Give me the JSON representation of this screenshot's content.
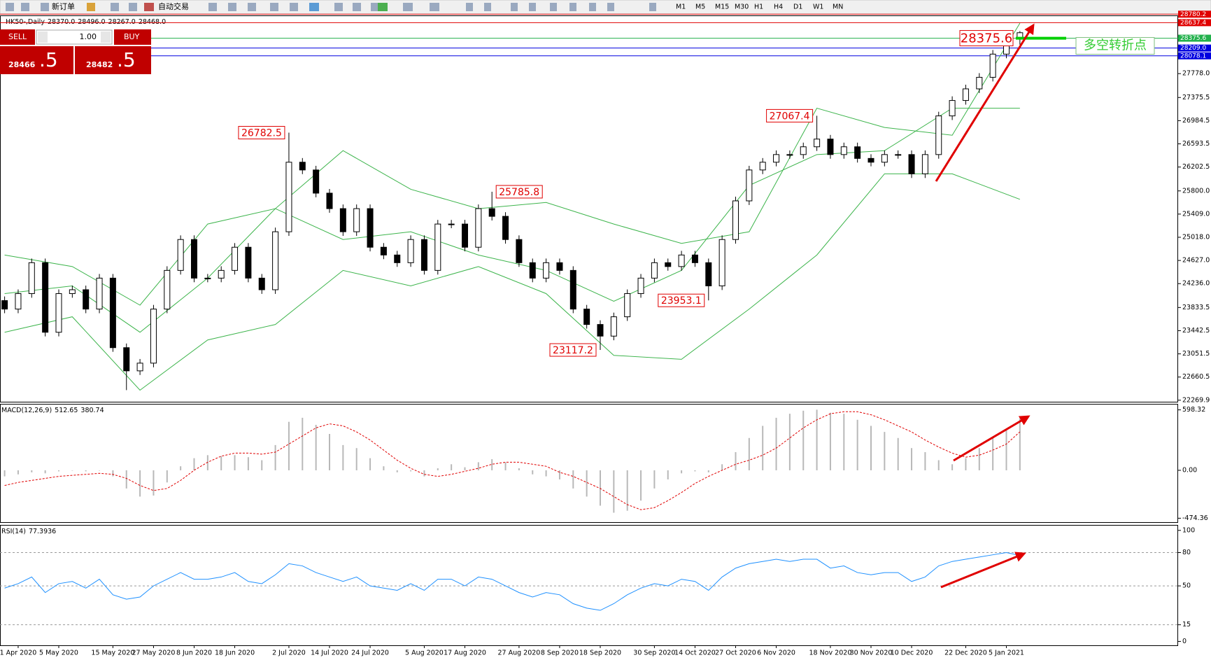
{
  "ui": {
    "toolbar": {
      "new_order": "新订单",
      "auto_trading": "自动交易",
      "timeframes": [
        "M1",
        "M5",
        "M15",
        "M30",
        "H1",
        "H4",
        "D1",
        "W1",
        "MN"
      ]
    },
    "trade": {
      "sell": "SELL",
      "buy": "BUY",
      "volume": "1.00",
      "sell_big": "28466",
      "sell_small": ".5",
      "buy_big": "28482",
      "buy_small": ".5"
    }
  },
  "chart_data": [
    {
      "type": "candlestick",
      "title": "HK50-,Daily",
      "last_quote_labels": [
        "28370.0",
        "28496.0",
        "28267.0",
        "28468.0"
      ],
      "up_color": "#ffffff",
      "down_color": "#000000",
      "wick_color": "#000000",
      "categories": [
        null,
        "1 Apr 2020",
        null,
        null,
        "5 May 2020",
        null,
        null,
        null,
        "15 May 2020",
        null,
        null,
        "27 May 2020",
        null,
        null,
        "8 Jun 2020",
        null,
        null,
        "18 Jun 2020",
        null,
        null,
        null,
        "2 Jul 2020",
        null,
        null,
        "14 Jul 2020",
        null,
        null,
        "24 Jul 2020",
        null,
        null,
        null,
        "5 Aug 2020",
        null,
        null,
        "17 Aug 2020",
        null,
        null,
        null,
        "27 Aug 2020",
        null,
        null,
        "8 Sep 2020",
        null,
        null,
        "18 Sep 2020",
        null,
        null,
        null,
        "30 Sep 2020",
        null,
        null,
        "14 Oct 2020",
        null,
        null,
        "27 Oct 2020",
        null,
        null,
        "6 Nov 2020",
        null,
        null,
        null,
        "18 Nov 2020",
        null,
        null,
        "30 Nov 2020",
        null,
        null,
        "10 Dec 2020",
        null,
        null,
        null,
        "22 Dec 2020",
        null,
        null,
        "5 Jan 2021",
        null
      ],
      "candles": [
        [
          23950,
          24020,
          23737,
          23807
        ],
        [
          23807,
          24138,
          23737,
          24068
        ],
        [
          24068,
          24659,
          23998,
          24589
        ],
        [
          24589,
          24659,
          23346,
          23416
        ],
        [
          23416,
          24138,
          23346,
          24068
        ],
        [
          24068,
          24203,
          23998,
          24133
        ],
        [
          24133,
          24203,
          23737,
          23807
        ],
        [
          23807,
          24399,
          23737,
          24329
        ],
        [
          24329,
          24399,
          23086,
          23156
        ],
        [
          23156,
          23226,
          22440,
          22765
        ],
        [
          22765,
          22965,
          22695,
          22895
        ],
        [
          22895,
          23877,
          22825,
          23807
        ],
        [
          23807,
          24529,
          23737,
          24459
        ],
        [
          24459,
          25050,
          24389,
          24980
        ],
        [
          24980,
          25050,
          24259,
          24329
        ],
        [
          24329,
          24399,
          24259,
          24329
        ],
        [
          24329,
          24529,
          24259,
          24459
        ],
        [
          24459,
          24920,
          24389,
          24850
        ],
        [
          24850,
          24920,
          24259,
          24329
        ],
        [
          24329,
          24399,
          24063,
          24133
        ],
        [
          24133,
          25181,
          24063,
          25111
        ],
        [
          25111,
          26782.5,
          25041,
          26284
        ],
        [
          26284,
          26354,
          26083,
          26153
        ],
        [
          26153,
          26223,
          25692,
          25762
        ],
        [
          25762,
          25832,
          25431,
          25501
        ],
        [
          25501,
          25571,
          25041,
          25111
        ],
        [
          25111,
          25571,
          25041,
          25501
        ],
        [
          25501,
          25571,
          24780,
          24850
        ],
        [
          24850,
          24920,
          24649,
          24719
        ],
        [
          24719,
          24789,
          24519,
          24589
        ],
        [
          24589,
          25050,
          24519,
          24980
        ],
        [
          24980,
          25050,
          24389,
          24459
        ],
        [
          24459,
          25311,
          24389,
          25241
        ],
        [
          25241,
          25311,
          25171,
          25241
        ],
        [
          25241,
          25311,
          24780,
          24850
        ],
        [
          24850,
          25571,
          24780,
          25501
        ],
        [
          25501,
          25785.8,
          25301,
          25371
        ],
        [
          25371,
          25441,
          24910,
          24980
        ],
        [
          24980,
          25050,
          24519,
          24589
        ],
        [
          24589,
          24659,
          24259,
          24329
        ],
        [
          24329,
          24659,
          24259,
          24589
        ],
        [
          24589,
          24659,
          24389,
          24459
        ],
        [
          24459,
          24529,
          23737,
          23807
        ],
        [
          23807,
          23877,
          23477,
          23547
        ],
        [
          23547,
          23617,
          23117.2,
          23351
        ],
        [
          23351,
          23747,
          23281,
          23677
        ],
        [
          23677,
          24138,
          23607,
          24068
        ],
        [
          24068,
          24399,
          23998,
          24329
        ],
        [
          24329,
          24659,
          24259,
          24589
        ],
        [
          24589,
          24659,
          24454,
          24524
        ],
        [
          24524,
          24789,
          24454,
          24719
        ],
        [
          24719,
          24789,
          24519,
          24589
        ],
        [
          24589,
          24659,
          23953.1,
          24198
        ],
        [
          24198,
          25050,
          24128,
          24980
        ],
        [
          24980,
          25702,
          24910,
          25632
        ],
        [
          25632,
          26223,
          25562,
          26153
        ],
        [
          26153,
          26354,
          26083,
          26284
        ],
        [
          26284,
          26483,
          26214,
          26413
        ],
        [
          26413,
          26483,
          26343,
          26413
        ],
        [
          26413,
          26614,
          26343,
          26544
        ],
        [
          26544,
          27067.4,
          26474,
          26674
        ],
        [
          26674,
          26744,
          26343,
          26413
        ],
        [
          26413,
          26614,
          26343,
          26544
        ],
        [
          26544,
          26614,
          26278,
          26348
        ],
        [
          26348,
          26418,
          26214,
          26284
        ],
        [
          26284,
          26483,
          26214,
          26413
        ],
        [
          26413,
          26483,
          26343,
          26413
        ],
        [
          26413,
          26483,
          26018,
          26088
        ],
        [
          26088,
          26483,
          26018,
          26413
        ],
        [
          26413,
          27135,
          26343,
          27065
        ],
        [
          27065,
          27395,
          26995,
          27325
        ],
        [
          27325,
          27591,
          27255,
          27521
        ],
        [
          27521,
          27786,
          27451,
          27716
        ],
        [
          27716,
          28177,
          27646,
          28107
        ],
        [
          28107,
          28373,
          28037,
          28303
        ],
        [
          28370,
          28496,
          28267,
          28468
        ]
      ],
      "bollinger": {
        "color": "#3cb44b",
        "x": [
          0,
          5,
          10,
          15,
          20,
          25,
          30,
          35,
          40,
          45,
          50,
          55,
          60,
          65,
          70,
          75
        ],
        "upper": [
          24719,
          24524,
          23873,
          25241,
          25501,
          26479,
          25827,
          25501,
          25605,
          25241,
          24915,
          25111,
          27195,
          26870,
          26739,
          28629
        ],
        "middle": [
          24068,
          24198,
          23416,
          24329,
          25501,
          24980,
          25111,
          24719,
          24459,
          23938,
          24459,
          25892,
          26413,
          26479,
          27195,
          27195
        ],
        "lower": [
          23416,
          23677,
          22439,
          23286,
          23547,
          24459,
          24198,
          24524,
          24068,
          23026,
          22960,
          23807,
          24719,
          26088,
          26088,
          25658
        ]
      },
      "levels": [
        {
          "value": 28780.2,
          "color": "#e00000"
        },
        {
          "value": 28637.4,
          "color": "#e00000"
        },
        {
          "value": 28375.6,
          "color": "#22b14c"
        },
        {
          "value": 28209,
          "label": "28209.0",
          "color": "#0000e0"
        },
        {
          "value": 28078.1,
          "color": "#0000e0"
        }
      ],
      "annotation": "多空转折点",
      "ylim": [
        22244,
        28760
      ],
      "yticks": [
        {
          "value": 27778,
          "label": "27778.0"
        },
        27375.5,
        26984.5,
        26593.5,
        26202.5,
        {
          "value": 25800,
          "label": "25800.0"
        },
        {
          "value": 25409,
          "label": "25409.0"
        },
        {
          "value": 25018,
          "label": "25018.0"
        },
        {
          "value": 24627,
          "label": "24627.0"
        },
        {
          "value": 24236,
          "label": "24236.0"
        },
        23833.5,
        23442.5,
        23051.5,
        22660.5,
        22269.9
      ]
    },
    {
      "type": "macd",
      "title": "MACD(12,26,9)",
      "histogram": {
        "color": "#b8b8b8",
        "values": [
          -60,
          -40,
          -20,
          -30,
          -10,
          0,
          -10,
          0,
          -60,
          -180,
          -260,
          -250,
          -120,
          40,
          120,
          150,
          140,
          150,
          130,
          100,
          250,
          480,
          520,
          450,
          360,
          250,
          220,
          120,
          40,
          -20,
          -10,
          -60,
          20,
          60,
          30,
          80,
          110,
          80,
          20,
          -40,
          -60,
          -90,
          -180,
          -260,
          -350,
          -420,
          -400,
          -300,
          -180,
          -90,
          -30,
          -10,
          -20,
          60,
          180,
          320,
          440,
          520,
          560,
          590,
          600,
          570,
          560,
          500,
          440,
          380,
          320,
          220,
          180,
          100,
          60,
          120,
          220,
          320,
          400,
          512.65
        ]
      },
      "signal": {
        "color": "#e00000",
        "values": [
          -150,
          -120,
          -100,
          -80,
          -60,
          -50,
          -40,
          -30,
          -40,
          -80,
          -150,
          -200,
          -180,
          -100,
          0,
          80,
          140,
          170,
          170,
          160,
          180,
          260,
          340,
          420,
          460,
          440,
          380,
          300,
          200,
          100,
          20,
          -40,
          -60,
          -40,
          -10,
          20,
          60,
          80,
          80,
          60,
          40,
          -20,
          -60,
          -120,
          -180,
          -260,
          -340,
          -390,
          -370,
          -300,
          -220,
          -130,
          -60,
          0,
          60,
          100,
          150,
          220,
          320,
          420,
          500,
          560,
          580,
          580,
          550,
          500,
          440,
          380,
          300,
          230,
          170,
          130,
          150,
          200,
          260,
          380.74
        ]
      },
      "ylim": [
        -513,
        658
      ],
      "yticks": [
        598.32,
        {
          "value": 0,
          "label": "0.00"
        },
        -474.36
      ]
    },
    {
      "type": "line",
      "title": "RSI(14)",
      "color": "#1e90ff",
      "values": [
        48,
        52,
        58,
        44,
        52,
        54,
        48,
        56,
        42,
        38,
        40,
        50,
        56,
        62,
        56,
        56,
        58,
        62,
        54,
        52,
        60,
        70,
        68,
        62,
        58,
        54,
        58,
        50,
        48,
        46,
        52,
        46,
        56,
        56,
        50,
        58,
        56,
        50,
        44,
        40,
        44,
        42,
        34,
        30,
        28,
        34,
        42,
        48,
        52,
        50,
        56,
        54,
        46,
        58,
        66,
        70,
        72,
        74,
        72,
        74,
        74,
        66,
        68,
        62,
        60,
        62,
        62,
        54,
        58,
        68,
        72,
        74,
        76,
        78,
        80,
        77.3936
      ],
      "levels": [
        80,
        50,
        15
      ],
      "ylim": [
        -3.5,
        104.9
      ],
      "yticks": [
        100,
        80,
        50,
        15,
        0
      ]
    }
  ]
}
